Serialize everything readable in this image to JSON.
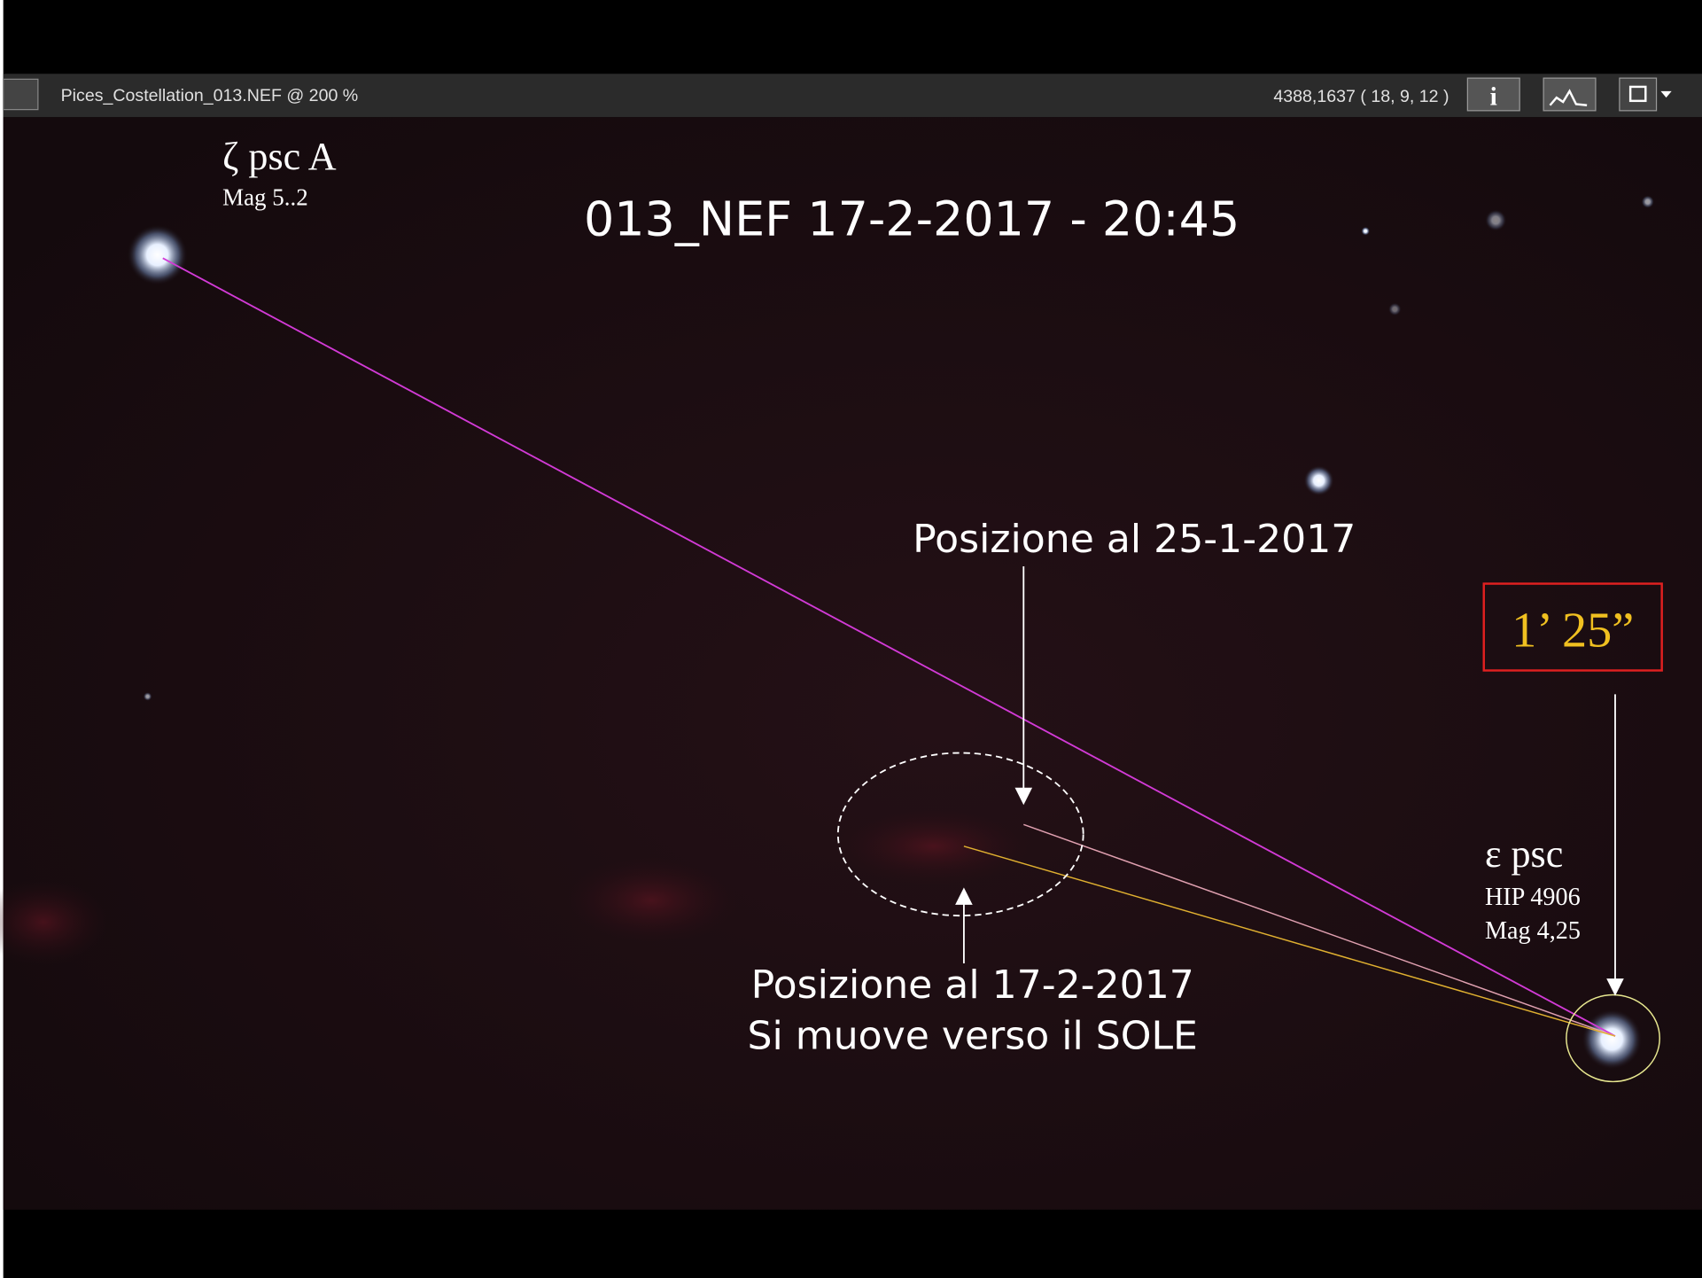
{
  "toolbar": {
    "filename": "Pices_Costellation_013.NEF @ 200 %",
    "coordinates": "4388,1637 ( 18, 9, 12 )",
    "info_button": "i"
  },
  "title": "013_NEF 17-2-2017 - 20:45",
  "stars": [
    {
      "name": "ζ psc A",
      "details": [
        "Mag 5..2"
      ]
    },
    {
      "name": "ε psc",
      "details": [
        "HIP 4906",
        "Mag 4,25"
      ]
    }
  ],
  "annotations": {
    "position_jan": "Posizione al 25-1-2017",
    "position_feb": [
      "Posizione al 17-2-2017",
      "Si muove verso il SOLE"
    ],
    "distance": "1’ 25”"
  }
}
